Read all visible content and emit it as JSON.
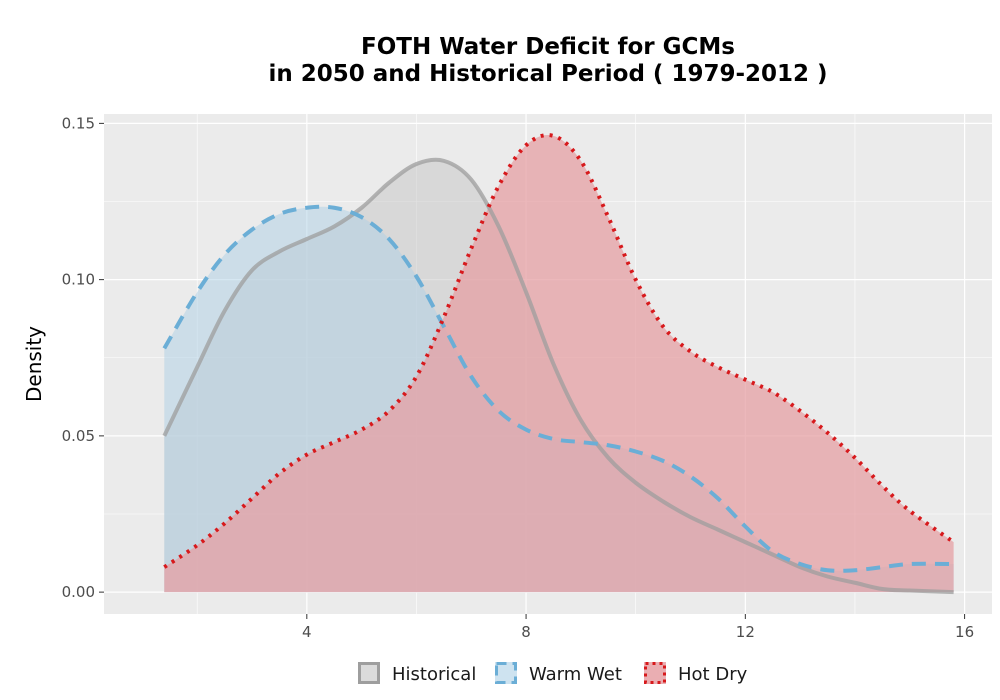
{
  "chart_data": {
    "type": "area",
    "title_line1": "FOTH  Water Deficit for GCMs",
    "title_line2": "in 2050 and Historical Period ( 1979-2012 )",
    "xlabel": "",
    "ylabel": "Density",
    "xlim": [
      0.3,
      16.5
    ],
    "ylim": [
      -0.007,
      0.153
    ],
    "x_ticks": [
      4,
      8,
      12,
      16
    ],
    "x_tick_labels": [
      "4",
      "8",
      "12",
      "16"
    ],
    "y_ticks": [
      0.0,
      0.05,
      0.1,
      0.15
    ],
    "y_tick_labels": [
      "0.00",
      "0.05",
      "0.10",
      "0.15"
    ],
    "grid": true,
    "legend_position": "bottom",
    "series": [
      {
        "name": "Historical",
        "color": "#9e9e9e",
        "fill": "#c8c8c8",
        "fill_opacity": 0.55,
        "line_style": "solid",
        "x": [
          1.4,
          2.0,
          2.5,
          3.0,
          3.5,
          4.0,
          4.5,
          5.0,
          5.5,
          6.0,
          6.5,
          7.0,
          7.5,
          8.0,
          8.5,
          9.0,
          9.5,
          10.0,
          10.5,
          11.0,
          11.5,
          12.0,
          12.5,
          13.0,
          13.5,
          14.0,
          14.5,
          15.0,
          15.8
        ],
        "y": [
          0.05,
          0.072,
          0.09,
          0.103,
          0.109,
          0.113,
          0.117,
          0.123,
          0.131,
          0.137,
          0.138,
          0.132,
          0.117,
          0.096,
          0.073,
          0.055,
          0.043,
          0.035,
          0.029,
          0.024,
          0.02,
          0.016,
          0.012,
          0.008,
          0.005,
          0.003,
          0.001,
          0.0005,
          0.0
        ]
      },
      {
        "name": "Warm Wet",
        "color": "#6baed6",
        "fill": "#aed0e6",
        "fill_opacity": 0.5,
        "line_style": "dashed",
        "x": [
          1.4,
          2.0,
          2.5,
          3.0,
          3.5,
          4.0,
          4.5,
          5.0,
          5.5,
          6.0,
          6.5,
          7.0,
          7.5,
          8.0,
          8.5,
          9.0,
          9.5,
          10.0,
          10.5,
          11.0,
          11.5,
          12.0,
          12.5,
          13.0,
          13.5,
          14.0,
          14.5,
          15.0,
          15.8
        ],
        "y": [
          0.078,
          0.096,
          0.108,
          0.116,
          0.121,
          0.123,
          0.123,
          0.12,
          0.113,
          0.101,
          0.085,
          0.069,
          0.058,
          0.052,
          0.049,
          0.048,
          0.047,
          0.045,
          0.042,
          0.037,
          0.03,
          0.021,
          0.013,
          0.009,
          0.007,
          0.007,
          0.008,
          0.009,
          0.009
        ]
      },
      {
        "name": "Hot Dry",
        "color": "#d7191c",
        "fill": "#e6a0a4",
        "fill_opacity": 0.75,
        "line_style": "dotted",
        "x": [
          1.4,
          2.0,
          2.5,
          3.0,
          3.5,
          4.0,
          4.5,
          5.0,
          5.5,
          6.0,
          6.5,
          7.0,
          7.5,
          8.0,
          8.5,
          9.0,
          9.5,
          10.0,
          10.5,
          11.0,
          11.5,
          12.0,
          12.5,
          13.0,
          13.5,
          14.0,
          14.5,
          15.0,
          15.8
        ],
        "y": [
          0.008,
          0.015,
          0.022,
          0.03,
          0.038,
          0.044,
          0.048,
          0.052,
          0.058,
          0.069,
          0.088,
          0.11,
          0.13,
          0.143,
          0.146,
          0.138,
          0.12,
          0.1,
          0.085,
          0.077,
          0.072,
          0.068,
          0.064,
          0.058,
          0.051,
          0.043,
          0.034,
          0.026,
          0.016
        ]
      }
    ]
  }
}
